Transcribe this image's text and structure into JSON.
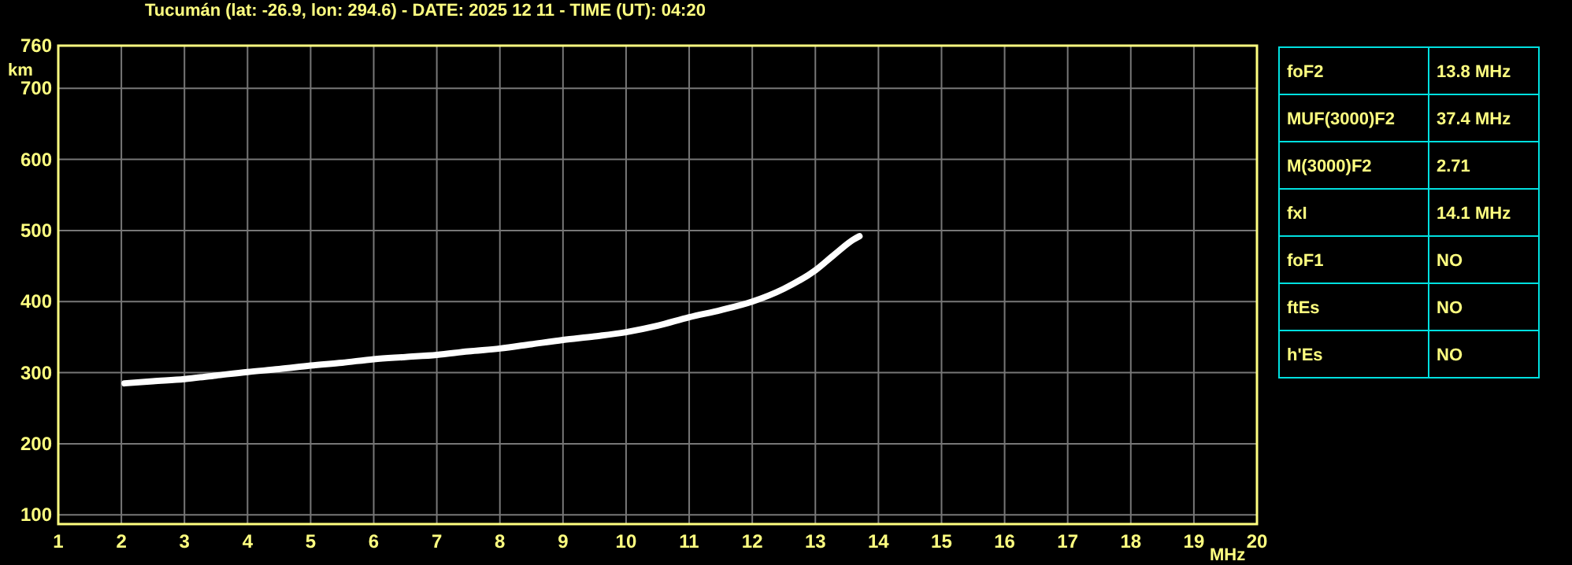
{
  "chart_data": [
    {
      "type": "line",
      "title": "Tucumán (lat: -26.9, lon: 294.6) - DATE: 2025 12 11 - TIME (UT): 04:20",
      "xlabel": "MHz",
      "ylabel": "km",
      "x": [
        2.05,
        2.5,
        3,
        3.5,
        4,
        4.5,
        5,
        5.5,
        6,
        6.5,
        7,
        7.5,
        8,
        8.5,
        9,
        9.5,
        10,
        10.5,
        11,
        11.5,
        12,
        12.5,
        13,
        13.3,
        13.6,
        13.7
      ],
      "series": [
        {
          "color": "#ffffff",
          "values": [
            285,
            288,
            291,
            296,
            301,
            305,
            310,
            314,
            319,
            322,
            325,
            330,
            334,
            340,
            346,
            351,
            357,
            366,
            378,
            388,
            400,
            418,
            444,
            466,
            487,
            492
          ]
        }
      ],
      "xlim": [
        1,
        20
      ],
      "xticks": [
        1,
        2,
        3,
        4,
        5,
        6,
        7,
        8,
        9,
        10,
        11,
        12,
        13,
        14,
        15,
        16,
        17,
        18,
        19,
        20
      ],
      "ylim": [
        87,
        760
      ],
      "yticks": [
        100,
        200,
        300,
        400,
        500,
        600,
        700,
        760
      ],
      "grid": true,
      "line_style": "solid"
    },
    {
      "type": "other",
      "annotations": [
        "foF2",
        "13.8 MHz",
        "MUF(3000)F2",
        "37.4 MHz",
        "M(3000)F2",
        "2.71",
        "fxI",
        "14.1 MHz",
        "foF1",
        "NO",
        "ftEs",
        "NO",
        "h'Es",
        "NO"
      ]
    }
  ]
}
